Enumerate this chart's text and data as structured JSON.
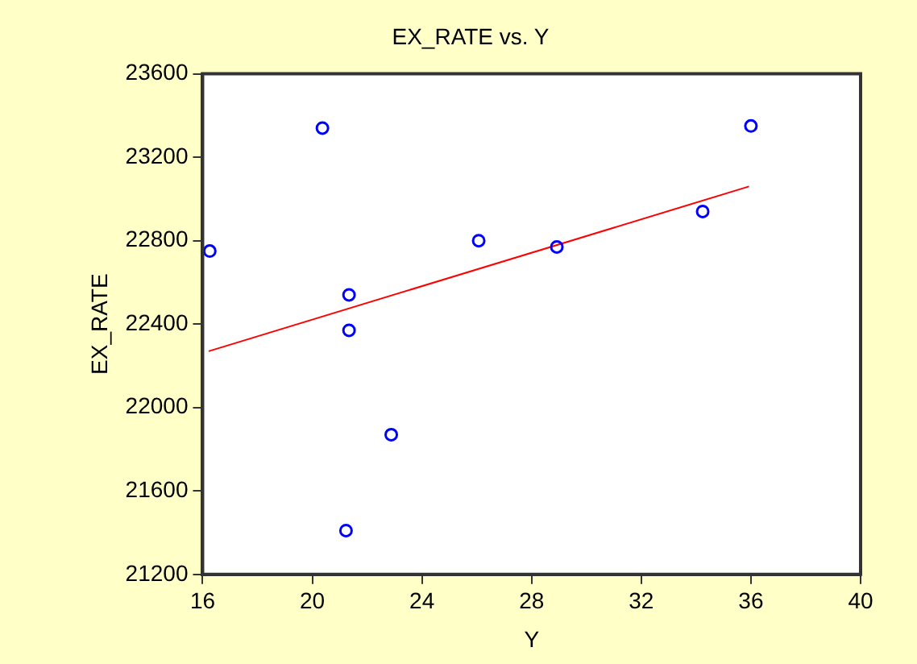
{
  "chart_data": {
    "type": "scatter",
    "title": "EX_RATE vs. Y",
    "xlabel": "Y",
    "ylabel": "EX_RATE",
    "xlim": [
      16,
      40
    ],
    "xticks": [
      16,
      20,
      24,
      28,
      32,
      36,
      40
    ],
    "ylim": [
      21200,
      23600
    ],
    "yticks": [
      21200,
      21600,
      22000,
      22400,
      22800,
      23200,
      23600
    ],
    "grid": false,
    "legend": false,
    "series": [
      {
        "marker": "circle",
        "color": "#0000ff",
        "x": [
          16.26,
          20.37,
          21.34,
          21.34,
          21.23,
          22.88,
          26.07,
          28.92,
          34.24,
          36.0
        ],
        "values": [
          22750,
          23340,
          22540,
          22370,
          21410,
          21870,
          22800,
          22770,
          22940,
          23350
        ]
      },
      {
        "type": "line",
        "marker": "none",
        "color": "#ff0000",
        "x": [
          16.22,
          35.93
        ],
        "values": [
          22270,
          23060
        ]
      }
    ]
  }
}
